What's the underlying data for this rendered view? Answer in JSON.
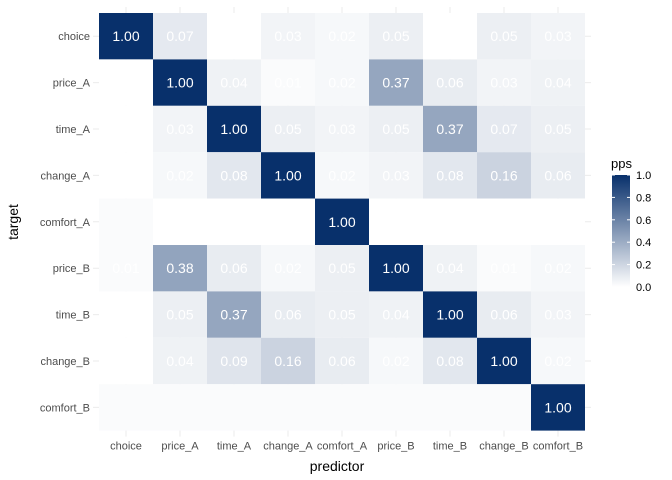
{
  "chart_data": {
    "type": "heatmap",
    "xlabel": "predictor",
    "ylabel": "target",
    "x_categories": [
      "choice",
      "price_A",
      "time_A",
      "change_A",
      "comfort_A",
      "price_B",
      "time_B",
      "change_B",
      "comfort_B"
    ],
    "y_categories": [
      "choice",
      "price_A",
      "time_A",
      "change_A",
      "comfort_A",
      "price_B",
      "time_B",
      "change_B",
      "comfort_B"
    ],
    "values": [
      [
        1.0,
        0.07,
        0.0,
        0.03,
        0.02,
        0.05,
        0.0,
        0.05,
        0.03
      ],
      [
        0.0,
        1.0,
        0.04,
        0.01,
        0.02,
        0.37,
        0.06,
        0.03,
        0.04
      ],
      [
        0.0,
        0.03,
        1.0,
        0.05,
        0.03,
        0.05,
        0.37,
        0.07,
        0.05
      ],
      [
        0.0,
        0.02,
        0.08,
        1.0,
        0.02,
        0.03,
        0.08,
        0.16,
        0.06
      ],
      [
        0.01,
        0.0,
        0.0,
        0.0,
        1.0,
        0.0,
        0.0,
        0.0,
        0.0
      ],
      [
        0.01,
        0.38,
        0.06,
        0.02,
        0.05,
        1.0,
        0.04,
        0.01,
        0.02
      ],
      [
        0.0,
        0.05,
        0.37,
        0.06,
        0.05,
        0.04,
        1.0,
        0.06,
        0.03
      ],
      [
        0.0,
        0.04,
        0.09,
        0.16,
        0.06,
        0.02,
        0.08,
        1.0,
        0.02
      ],
      [
        0.01,
        0.01,
        0.01,
        0.01,
        0.01,
        0.01,
        0.01,
        0.01,
        1.0
      ]
    ],
    "labels": [
      [
        "1.00",
        "0.07",
        "",
        "0.03",
        "0.02",
        "0.05",
        "",
        "0.05",
        "0.03"
      ],
      [
        "",
        "1.00",
        "0.04",
        "0.01",
        "0.02",
        "0.37",
        "0.06",
        "0.03",
        "0.04"
      ],
      [
        "",
        "0.03",
        "1.00",
        "0.05",
        "0.03",
        "0.05",
        "0.37",
        "0.07",
        "0.05"
      ],
      [
        "",
        "0.02",
        "0.08",
        "1.00",
        "0.02",
        "0.03",
        "0.08",
        "0.16",
        "0.06"
      ],
      [
        "",
        "",
        "",
        "",
        "1.00",
        "",
        "",
        "",
        ""
      ],
      [
        "0.01",
        "0.38",
        "0.06",
        "0.02",
        "0.05",
        "1.00",
        "0.04",
        "0.01",
        "0.02"
      ],
      [
        "",
        "0.05",
        "0.37",
        "0.06",
        "0.05",
        "0.04",
        "1.00",
        "0.06",
        "0.03"
      ],
      [
        "",
        "0.04",
        "0.09",
        "0.16",
        "0.06",
        "0.02",
        "0.08",
        "1.00",
        "0.02"
      ],
      [
        "",
        "",
        "",
        "",
        "",
        "",
        "",
        "",
        "1.00"
      ]
    ],
    "zlim": [
      0,
      1
    ],
    "colors": {
      "low": "#ffffff",
      "high": "#08306b"
    },
    "legend": {
      "title": "pps",
      "ticks": [
        "0.0",
        "0.2",
        "0.4",
        "0.6",
        "0.8",
        "1.0"
      ],
      "position": "right"
    },
    "grid": true
  }
}
